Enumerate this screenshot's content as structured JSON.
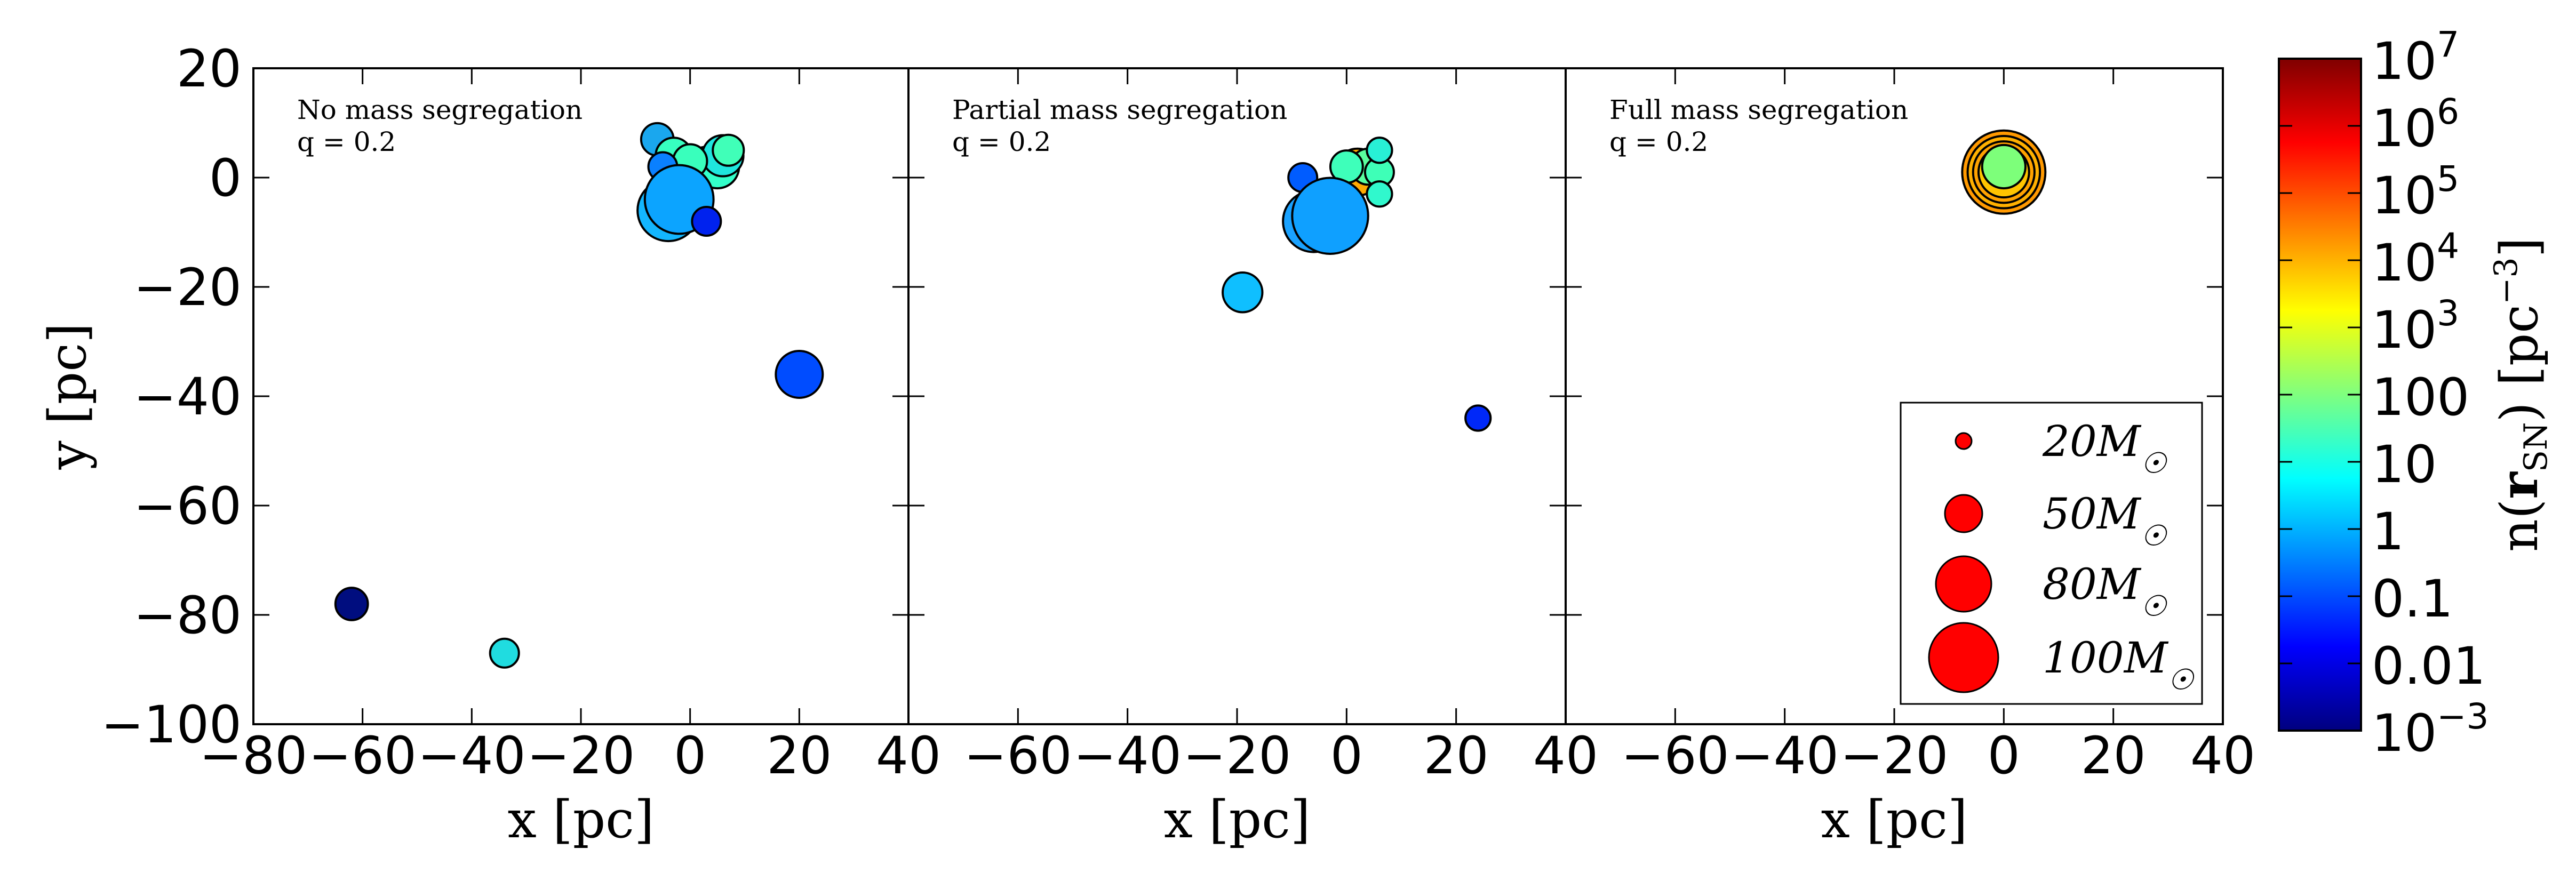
{
  "chart_data": [
    {
      "type": "scatter",
      "annotation_lines": [
        "No mass segregation",
        "q = 0.2"
      ],
      "xlabel": "x [pc]",
      "ylabel": "y [pc]",
      "xlim": [
        -80,
        40
      ],
      "ylim": [
        -100,
        20
      ],
      "xticks": [
        "−80",
        "−60",
        "−40",
        "−20",
        "0",
        "20",
        "40"
      ],
      "yticks": [
        "20",
        "0",
        "−20",
        "−40",
        "−60",
        "−80",
        "−100"
      ],
      "points": [
        {
          "x": -6,
          "y": 7,
          "mass": 30,
          "color": "#1aa7ee"
        },
        {
          "x": -3,
          "y": 4,
          "mass": 35,
          "color": "#37ffc0"
        },
        {
          "x": 3,
          "y": 2,
          "mass": 40,
          "color": "#2df5d0"
        },
        {
          "x": 5,
          "y": 2,
          "mass": 45,
          "color": "#33ffca"
        },
        {
          "x": 6,
          "y": 4,
          "mass": 42,
          "color": "#1fe6de"
        },
        {
          "x": 7,
          "y": 5,
          "mass": 28,
          "color": "#40ffb8"
        },
        {
          "x": 0,
          "y": 3,
          "mass": 32,
          "color": "#39ffbc"
        },
        {
          "x": -5,
          "y": 2,
          "mass": 25,
          "color": "#0a80ff"
        },
        {
          "x": -4,
          "y": -6,
          "mass": 70,
          "color": "#13b6ff"
        },
        {
          "x": -2,
          "y": -4,
          "mass": 80,
          "color": "#0ca4ff"
        },
        {
          "x": 3,
          "y": -8,
          "mass": 25,
          "color": "#0022ee"
        },
        {
          "x": 20,
          "y": -36,
          "mass": 50,
          "color": "#004cff"
        },
        {
          "x": -62,
          "y": -78,
          "mass": 30,
          "color": "#000d7f"
        },
        {
          "x": -34,
          "y": -87,
          "mass": 25,
          "color": "#20dce0"
        }
      ]
    },
    {
      "type": "scatter",
      "annotation_lines": [
        "Partial mass segregation",
        "q = 0.2"
      ],
      "xlabel": "x [pc]",
      "xlim": [
        -80,
        40
      ],
      "ylim": [
        -100,
        20
      ],
      "xticks": [
        "−60",
        "−40",
        "−20",
        "0",
        "20",
        "40"
      ],
      "points": [
        {
          "x": 2,
          "y": 1,
          "mass": 50,
          "color": "#ffaa00"
        },
        {
          "x": 4,
          "y": 2,
          "mass": 35,
          "color": "#5aff9e"
        },
        {
          "x": 6,
          "y": 1,
          "mass": 25,
          "color": "#3effb7"
        },
        {
          "x": 6,
          "y": 5,
          "mass": 20,
          "color": "#28f0d6"
        },
        {
          "x": 6,
          "y": -3,
          "mass": 20,
          "color": "#30f8cd"
        },
        {
          "x": 0,
          "y": 2,
          "mass": 30,
          "color": "#3effba"
        },
        {
          "x": -8,
          "y": 0,
          "mass": 25,
          "color": "#005cff"
        },
        {
          "x": -6,
          "y": -8,
          "mass": 70,
          "color": "#1aa2ff"
        },
        {
          "x": -3,
          "y": -7,
          "mass": 90,
          "color": "#0fa0ff"
        },
        {
          "x": -19,
          "y": -21,
          "mass": 40,
          "color": "#0fbfff"
        },
        {
          "x": 24,
          "y": -44,
          "mass": 20,
          "color": "#0028f8"
        }
      ]
    },
    {
      "type": "scatter",
      "annotation_lines": [
        "Full mass segregation",
        "q = 0.2"
      ],
      "xlabel": "x [pc]",
      "xlim": [
        -80,
        40
      ],
      "ylim": [
        -100,
        20
      ],
      "xticks": [
        "−60",
        "−40",
        "−20",
        "0",
        "20",
        "40"
      ],
      "points": [
        {
          "x": 0,
          "y": 1,
          "mass": 100,
          "color": "#ff9900"
        },
        {
          "x": 0,
          "y": 1,
          "mass": 85,
          "color": "#ffb000"
        },
        {
          "x": 0,
          "y": 1,
          "mass": 70,
          "color": "#ffa200"
        },
        {
          "x": 0,
          "y": 1,
          "mass": 55,
          "color": "#ffc400"
        },
        {
          "x": 0,
          "y": 2,
          "mass": 45,
          "color": "#7dff7a"
        }
      ],
      "legend": {
        "placement": "lower-right",
        "entries": [
          {
            "label": "20M☉",
            "mass": 20
          },
          {
            "label": "50M☉",
            "mass": 50
          },
          {
            "label": "80M☉",
            "mass": 80
          },
          {
            "label": "100M☉",
            "mass": 100
          }
        ],
        "marker_color": "#ff0000"
      }
    }
  ],
  "colorbar": {
    "label": "n(r_SN) [pc^-3]",
    "label_main": "n(",
    "label_bold": "r",
    "label_sub": "SN",
    "label_close": ") [pc",
    "label_sup": "−3",
    "label_end": "]",
    "scale": "log",
    "range": [
      0.001,
      10000000
    ],
    "ticks": [
      {
        "base": "10",
        "exp": "7"
      },
      {
        "base": "10",
        "exp": "6"
      },
      {
        "base": "10",
        "exp": "5"
      },
      {
        "base": "10",
        "exp": "4"
      },
      {
        "base": "10",
        "exp": "3"
      },
      {
        "base": "100",
        "exp": ""
      },
      {
        "base": "10",
        "exp": ""
      },
      {
        "base": "1",
        "exp": ""
      },
      {
        "base": "0.1",
        "exp": ""
      },
      {
        "base": "0.01",
        "exp": ""
      },
      {
        "base": "10",
        "exp": "-3"
      }
    ],
    "colormap": [
      "#00007f",
      "#0000ff",
      "#007fff",
      "#00ffff",
      "#7fff7f",
      "#ffff00",
      "#ff7f00",
      "#ff0000",
      "#7f0000"
    ]
  }
}
